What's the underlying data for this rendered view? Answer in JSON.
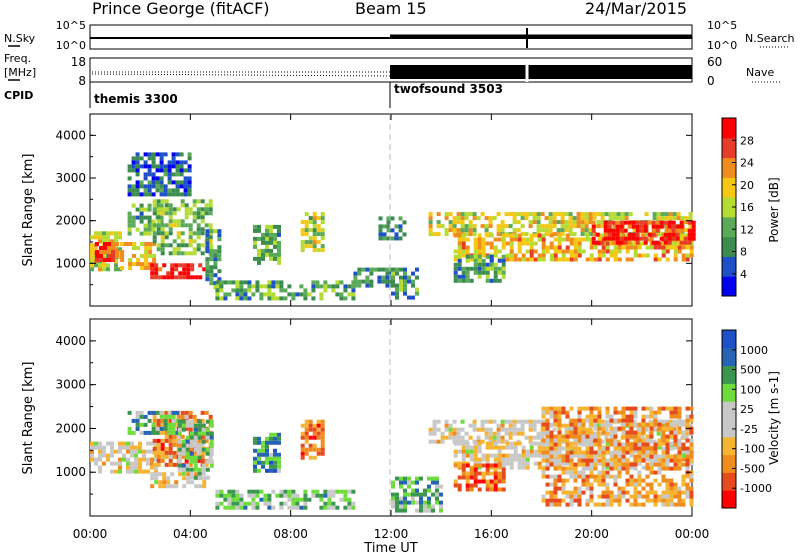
{
  "header": {
    "station": "Prince George (fitACF)",
    "beam": "Beam 15",
    "date": "24/Mar/2015"
  },
  "left_labels": {
    "nsky": "N.Sky",
    "freq_line1": "Freq.",
    "freq_line2": "[MHz]",
    "cpid": "CPID"
  },
  "right_labels": {
    "nsearch": "N.Search",
    "nave": "Nave"
  },
  "nsky_axis": {
    "left": [
      "10^5",
      "10^0"
    ],
    "right": [
      "10^5",
      "10^0"
    ]
  },
  "freq_axis": {
    "left": [
      "18",
      "8"
    ],
    "right": [
      "60",
      "0"
    ]
  },
  "cpid": [
    {
      "label": "themis 3300",
      "start_hour": 0
    },
    {
      "label": "twofsound 3503",
      "start_hour": 12.0
    }
  ],
  "colors": {
    "power": [
      "#0000ee",
      "#1e50c8",
      "#3c8c50",
      "#5aaa5a",
      "#b4dc32",
      "#f5c814",
      "#f08c1e",
      "#e63c28",
      "#ff0000"
    ],
    "velocity": [
      "#ff0000",
      "#e64b1e",
      "#f08c1e",
      "#f5b432",
      "#c8c8c8",
      "#c8c8c8",
      "#6edc3c",
      "#3c9650",
      "#2864b4",
      "#1e50c8"
    ]
  },
  "chart_data": [
    {
      "type": "heatmap",
      "title": "Power",
      "ylabel": "Slant Range [km]",
      "xlabel": "",
      "x_range_hours": [
        0,
        24
      ],
      "ylim": [
        0,
        4500
      ],
      "y_ticks": [
        "1000",
        "2000",
        "3000",
        "4000"
      ],
      "colorbar": {
        "label": "Power [dB]",
        "range": [
          0,
          32
        ],
        "ticks": [
          "4",
          "8",
          "12",
          "16",
          "20",
          "24",
          "28"
        ]
      },
      "regions": [
        {
          "t0": 0.0,
          "t1": 1.2,
          "r0": 900,
          "r1": 1750,
          "level": 0.55
        },
        {
          "t0": 0.2,
          "t1": 1.0,
          "r0": 1100,
          "r1": 1500,
          "level": 0.85
        },
        {
          "t0": 1.2,
          "t1": 2.6,
          "r0": 900,
          "r1": 1500,
          "level": 0.6
        },
        {
          "t0": 2.4,
          "t1": 4.6,
          "r0": 650,
          "r1": 1000,
          "level": 0.95
        },
        {
          "t0": 1.5,
          "t1": 2.8,
          "r0": 1700,
          "r1": 2400,
          "level": 0.35
        },
        {
          "t0": 2.5,
          "t1": 4.8,
          "r0": 1200,
          "r1": 2500,
          "level": 0.4
        },
        {
          "t0": 4.6,
          "t1": 5.2,
          "r0": 300,
          "r1": 1800,
          "level": 0.3
        },
        {
          "t0": 1.5,
          "t1": 4.0,
          "r0": 2600,
          "r1": 3600,
          "level": 0.2
        },
        {
          "t0": 5.0,
          "t1": 10.5,
          "r0": 150,
          "r1": 600,
          "level": 0.35
        },
        {
          "t0": 6.5,
          "t1": 7.5,
          "r0": 1000,
          "r1": 1900,
          "level": 0.35
        },
        {
          "t0": 8.4,
          "t1": 9.3,
          "r0": 1300,
          "r1": 2200,
          "level": 0.5
        },
        {
          "t0": 10.5,
          "t1": 12.0,
          "r0": 450,
          "r1": 900,
          "level": 0.3
        },
        {
          "t0": 11.5,
          "t1": 12.5,
          "r0": 1600,
          "r1": 2100,
          "level": 0.25
        },
        {
          "t0": 12.0,
          "t1": 13.0,
          "r0": 150,
          "r1": 900,
          "level": 0.3
        },
        {
          "t0": 13.5,
          "t1": 24.0,
          "r0": 1700,
          "r1": 2200,
          "level": 0.55
        },
        {
          "t0": 14.5,
          "t1": 24.0,
          "r0": 1100,
          "r1": 1700,
          "level": 0.65
        },
        {
          "t0": 20.0,
          "t1": 24.0,
          "r0": 1500,
          "r1": 2000,
          "level": 0.9
        },
        {
          "t0": 14.5,
          "t1": 16.5,
          "r0": 600,
          "r1": 1200,
          "level": 0.35
        }
      ]
    },
    {
      "type": "heatmap",
      "title": "Velocity",
      "ylabel": "Slant Range [km]",
      "xlabel": "Time UT",
      "x_range_hours": [
        0,
        24
      ],
      "x_ticks": [
        "00:00",
        "04:00",
        "08:00",
        "12:00",
        "16:00",
        "20:00",
        "00:00"
      ],
      "ylim": [
        0,
        4500
      ],
      "y_ticks": [
        "1000",
        "2000",
        "3000",
        "4000"
      ],
      "colorbar": {
        "label": "Velocity [m s-1]",
        "range": [
          -1000,
          1000
        ],
        "ticks": [
          "-1000",
          "-500",
          "-100",
          "-25",
          "25",
          "100",
          "500",
          "1000"
        ]
      },
      "regions": [
        {
          "t0": 0.0,
          "t1": 2.6,
          "r0": 1000,
          "r1": 1700,
          "level": 0.45
        },
        {
          "t0": 2.4,
          "t1": 4.6,
          "r0": 650,
          "r1": 1000,
          "level": 0.45
        },
        {
          "t0": 2.5,
          "t1": 4.8,
          "r0": 1200,
          "r1": 2400,
          "level": 0.25
        },
        {
          "t0": 1.5,
          "t1": 3.5,
          "r0": 1900,
          "r1": 2400,
          "level": 0.7
        },
        {
          "t0": 3.5,
          "t1": 4.8,
          "r0": 900,
          "r1": 2200,
          "level": 0.65
        },
        {
          "t0": 5.0,
          "t1": 10.5,
          "r0": 150,
          "r1": 600,
          "level": 0.65
        },
        {
          "t0": 6.5,
          "t1": 7.5,
          "r0": 1000,
          "r1": 1900,
          "level": 0.75
        },
        {
          "t0": 8.4,
          "t1": 9.3,
          "r0": 1300,
          "r1": 2200,
          "level": 0.2
        },
        {
          "t0": 12.0,
          "t1": 14.0,
          "r0": 150,
          "r1": 900,
          "level": 0.7
        },
        {
          "t0": 13.5,
          "t1": 24.0,
          "r0": 1700,
          "r1": 2200,
          "level": 0.45
        },
        {
          "t0": 14.5,
          "t1": 24.0,
          "r0": 1100,
          "r1": 1700,
          "level": 0.45
        },
        {
          "t0": 14.5,
          "t1": 16.5,
          "r0": 600,
          "r1": 1200,
          "level": 0.2
        },
        {
          "t0": 18.0,
          "t1": 24.0,
          "r0": 300,
          "r1": 2500,
          "level": 0.3
        }
      ]
    }
  ]
}
